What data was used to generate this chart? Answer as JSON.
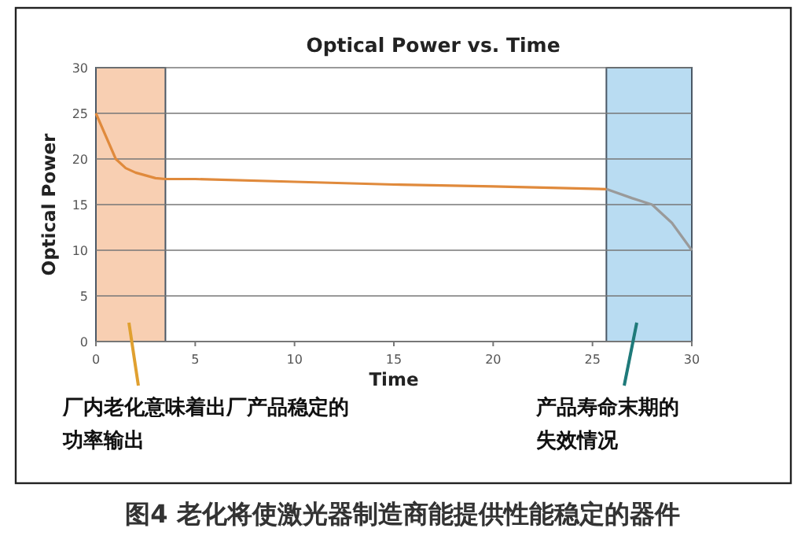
{
  "chart_data": {
    "type": "line",
    "title": "Optical Power vs. Time",
    "xlabel": "Time",
    "ylabel": "Optical Power",
    "xlim": [
      0,
      30
    ],
    "ylim": [
      0,
      30
    ],
    "xticks": [
      0,
      5,
      10,
      15,
      20,
      25,
      30
    ],
    "yticks": [
      0,
      5,
      10,
      15,
      20,
      25,
      30
    ],
    "grid": "y",
    "marker": "none",
    "line_style": "solid",
    "series": [
      {
        "color": "#e08a3c",
        "x": [
          0,
          0.5,
          1,
          1.5,
          2,
          3,
          3.5,
          5,
          10,
          15,
          20,
          25.7
        ],
        "values": [
          25,
          22.5,
          20,
          19,
          18.5,
          17.9,
          17.8,
          17.8,
          17.5,
          17.2,
          17,
          16.7
        ]
      },
      {
        "color": "#9a9a9a",
        "x": [
          25.7,
          27,
          28,
          29,
          30
        ],
        "values": [
          16.7,
          15.7,
          15,
          13,
          10
        ]
      }
    ],
    "bands": [
      {
        "axis": "x",
        "from": 0,
        "to": 3.5,
        "label": null,
        "color": "#f8cfb2"
      },
      {
        "axis": "x",
        "from": 25.7,
        "to": 30,
        "label": null,
        "color": "#b9dcf2"
      }
    ],
    "annotations": [
      "厂内老化意味着出厂产品稳定的功率输出",
      "产品寿命末期的失效情况",
      "图4 老化将使激光器制造商能提供性能稳定的器件"
    ]
  }
}
